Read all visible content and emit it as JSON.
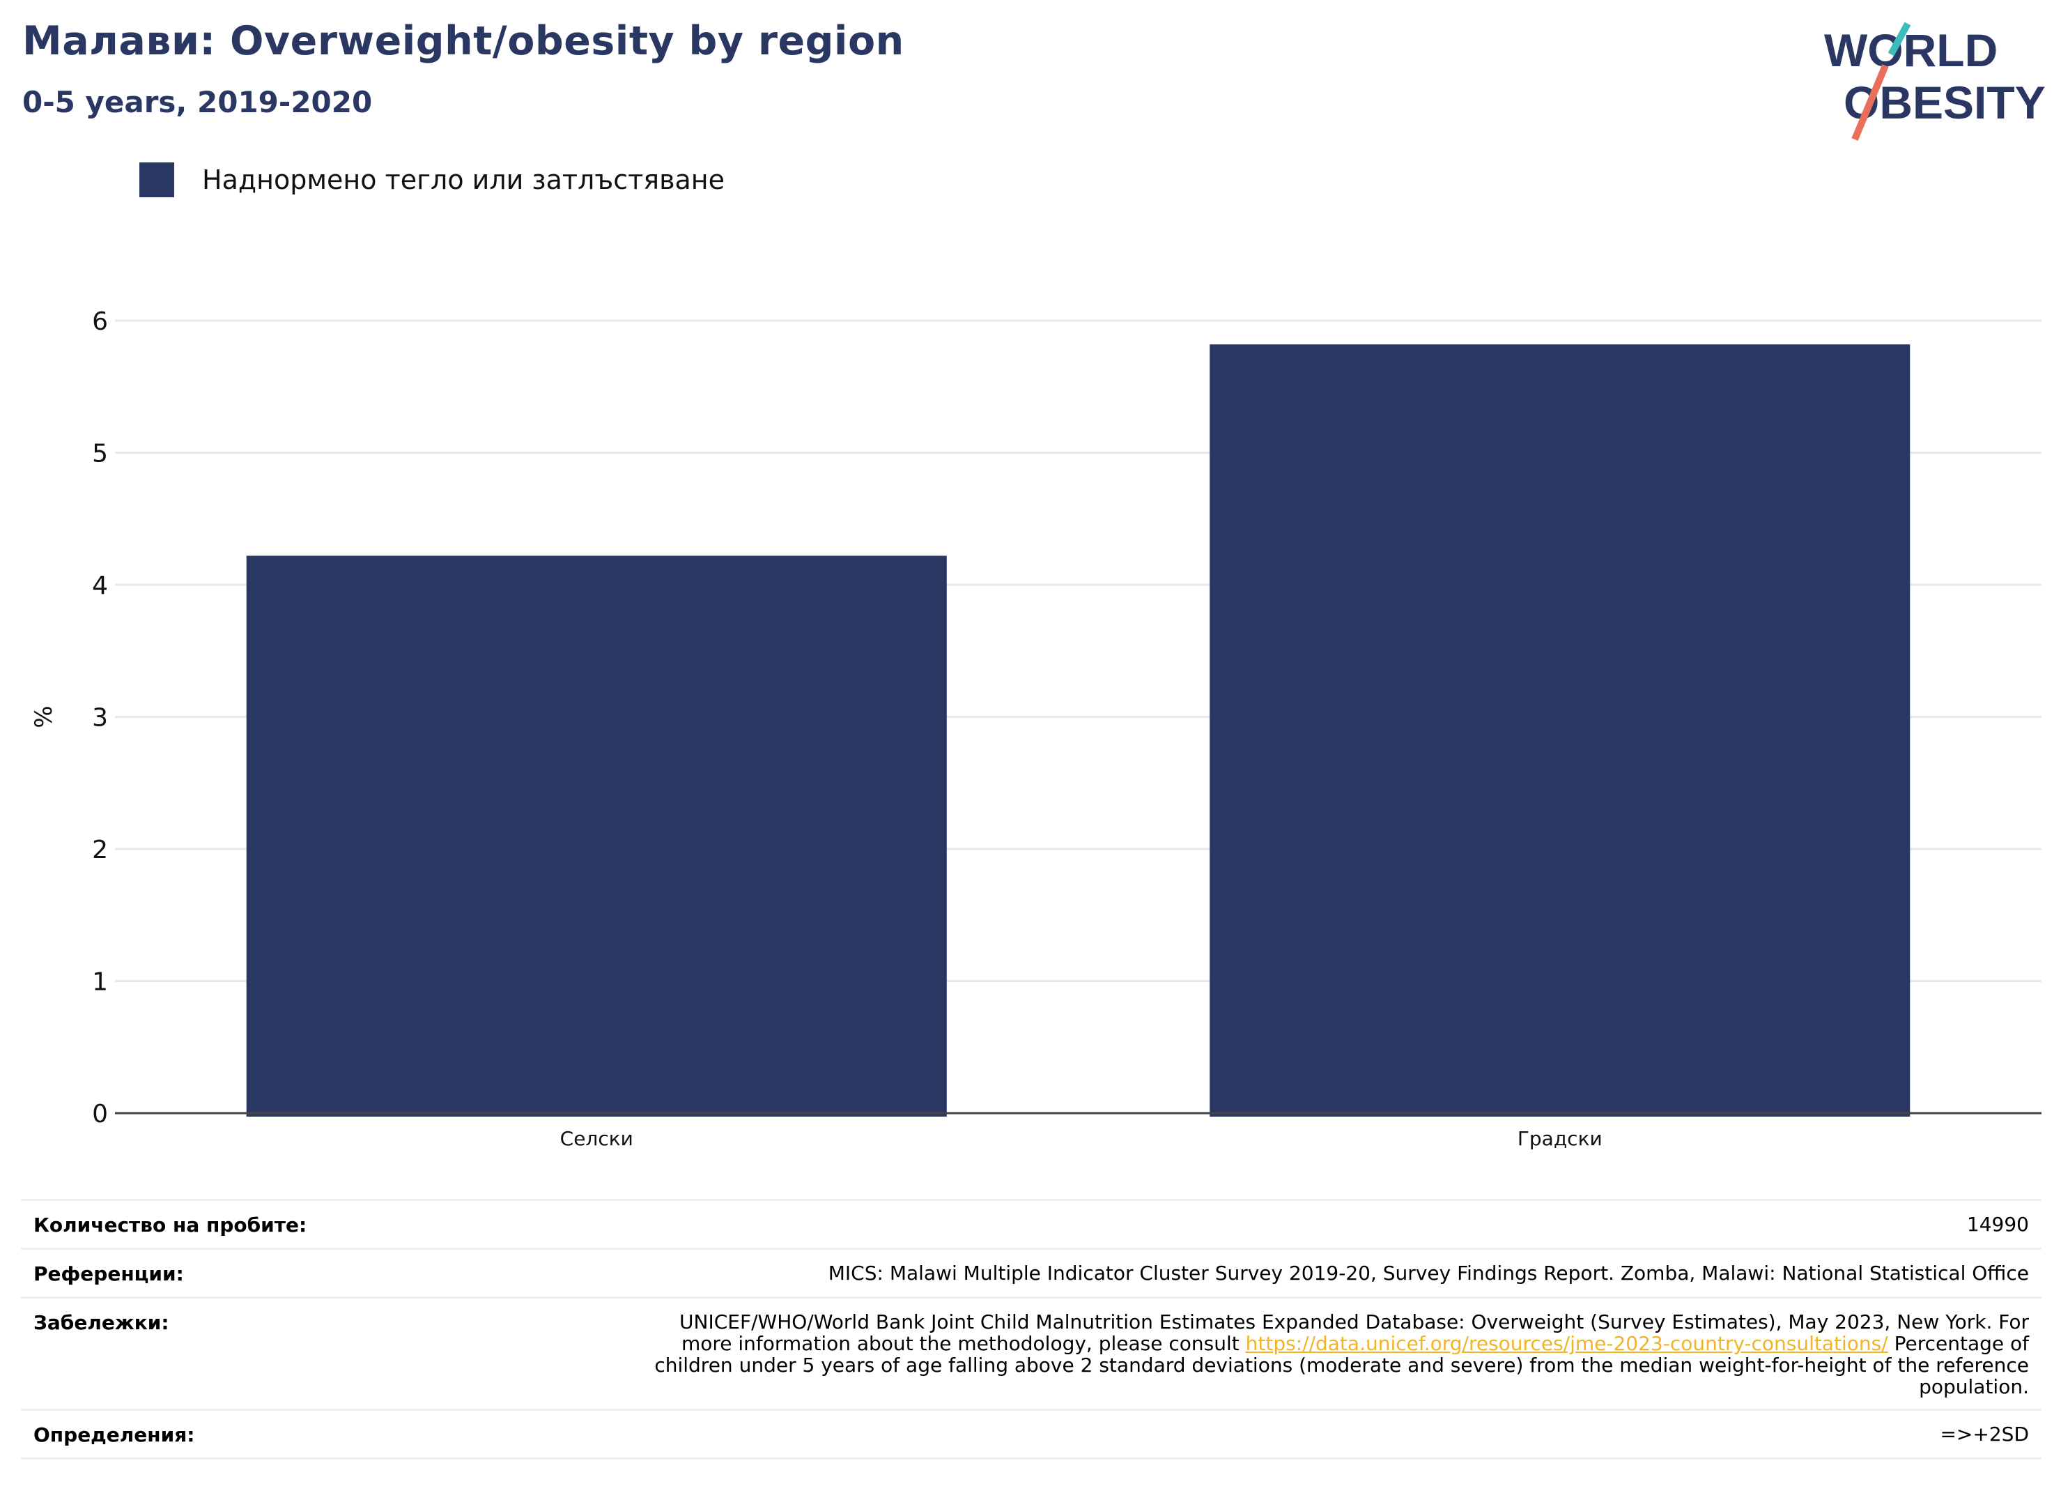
{
  "header": {
    "title": "Малави: Overweight/obesity by region",
    "subtitle": "0-5 years, 2019-2020"
  },
  "logo": {
    "line1": "WORLD",
    "line2": "OBESITY"
  },
  "legend": {
    "label": "Наднормено тегло или затлъстяване"
  },
  "colors": {
    "bar": "#2a3763",
    "title": "#2a3763",
    "link": "#f0b429",
    "logo_teal": "#3dbdb9",
    "logo_coral": "#e8705a"
  },
  "chart_data": {
    "type": "bar",
    "categories": [
      "Селски",
      "Градски"
    ],
    "series": [
      {
        "name": "Наднормено тегло или затлъстяване",
        "values": [
          4.22,
          5.82
        ]
      }
    ],
    "ylabel": "%",
    "ylim": [
      0,
      6
    ],
    "yticks": [
      "0",
      "1",
      "2",
      "3",
      "4",
      "5",
      "6"
    ],
    "grid": true,
    "legend_position": "top-left"
  },
  "info": {
    "sample_label": "Количество на пробите:",
    "sample_value": "14990",
    "references_label": "Референции:",
    "references_value": "MICS: Malawi Multiple Indicator Cluster Survey 2019-20, Survey Findings Report. Zomba, Malawi: National Statistical Office",
    "notes_label": "Забележки:",
    "notes_line1": "UNICEF/WHO/World Bank Joint Child Malnutrition Estimates Expanded Database: Overweight (Survey Estimates), May 2023, New York. For",
    "notes_line2_pre": "more information about the methodology, please consult ",
    "notes_link": "https://data.unicef.org/resources/jme-2023-country-consultations/",
    "notes_line2_post": " Percentage of",
    "notes_line3": "children under 5 years of age falling above 2 standard deviations (moderate and severe) from the median weight-for-height of the reference",
    "notes_line4": "population.",
    "definitions_label": "Определения:",
    "definitions_value": "=>+2SD"
  }
}
